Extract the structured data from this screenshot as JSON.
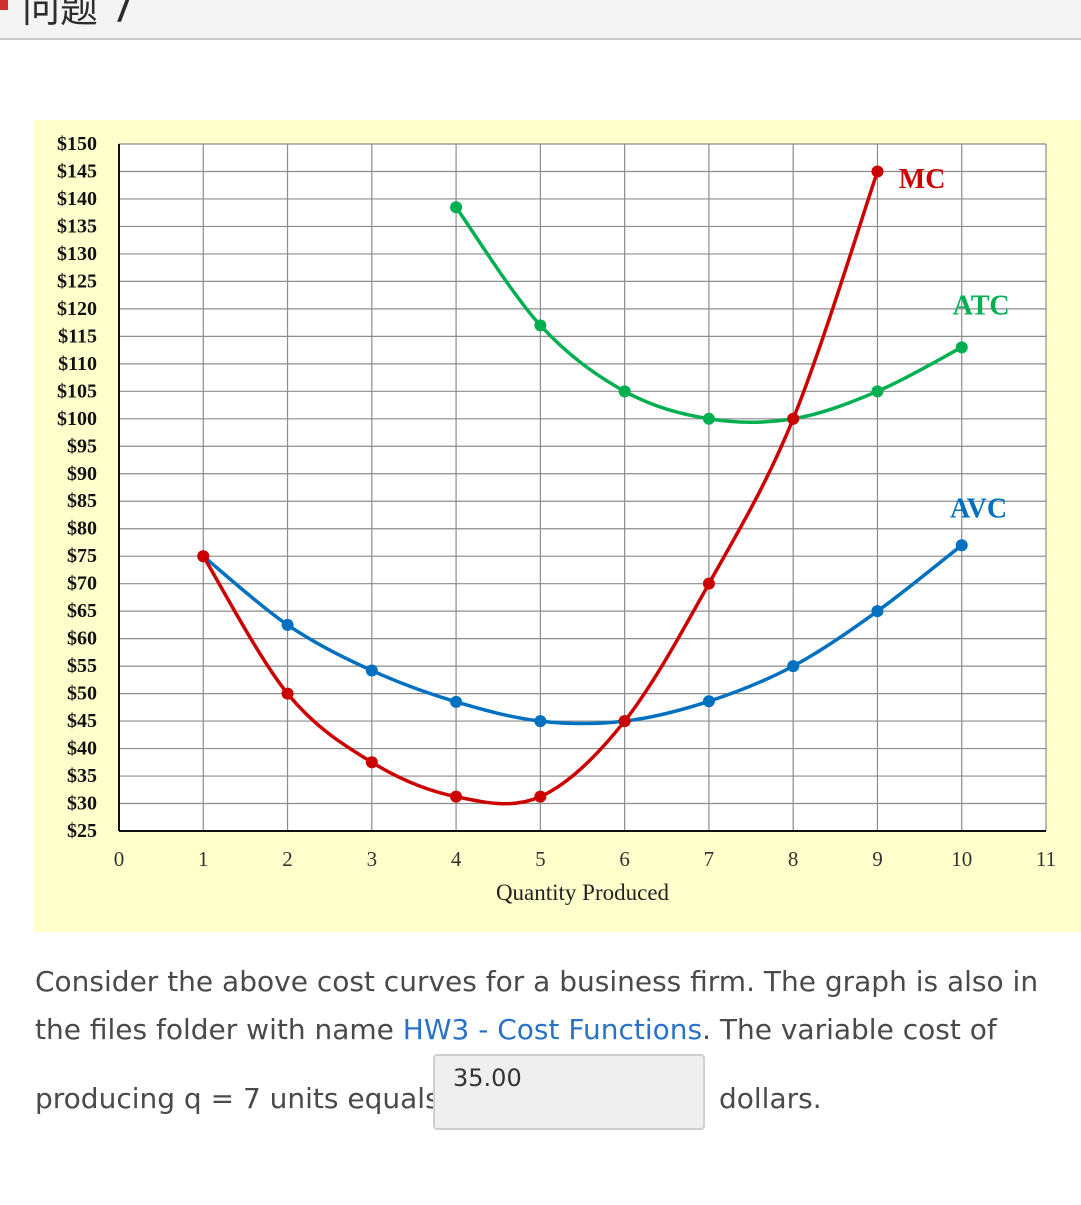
{
  "header": {
    "title": "问题 7"
  },
  "chart_data": {
    "type": "line",
    "xlabel": "Quantity Produced",
    "ylabel": "",
    "xlim": [
      0,
      11
    ],
    "ylim": [
      25,
      150
    ],
    "x_ticks": [
      0,
      1,
      2,
      3,
      4,
      5,
      6,
      7,
      8,
      9,
      10,
      11
    ],
    "y_ticks": [
      150,
      145,
      140,
      135,
      130,
      125,
      120,
      115,
      110,
      105,
      100,
      95,
      90,
      85,
      80,
      75,
      70,
      65,
      60,
      55,
      50,
      45,
      40,
      35,
      30,
      25
    ],
    "y_tick_prefix": "$",
    "grid": true,
    "series": [
      {
        "name": "MC",
        "color": "#cc0000",
        "x": [
          1,
          2,
          3,
          4,
          5,
          6,
          7,
          8,
          9
        ],
        "y": [
          75,
          50,
          37.5,
          31.25,
          31.25,
          45,
          70,
          100,
          145
        ]
      },
      {
        "name": "ATC",
        "color": "#00b050",
        "x": [
          4,
          5,
          6,
          7,
          8,
          9,
          10
        ],
        "y": [
          138.5,
          117,
          105,
          100,
          100,
          105,
          113
        ]
      },
      {
        "name": "AVC",
        "color": "#0070c0",
        "x": [
          1,
          2,
          3,
          4,
          5,
          6,
          7,
          8,
          9,
          10
        ],
        "y": [
          75,
          62.5,
          54.2,
          48.5,
          45,
          45,
          48.6,
          55,
          65,
          77
        ]
      }
    ]
  },
  "question": {
    "text_before": "Consider the above cost curves for a business firm. The graph is also in the files folder with name ",
    "link_text": "HW3 - Cost Functions",
    "text_after": ". The variable cost of",
    "prefix": "producing q = 7 units equals",
    "answer_value": "35.00",
    "suffix": "dollars."
  }
}
